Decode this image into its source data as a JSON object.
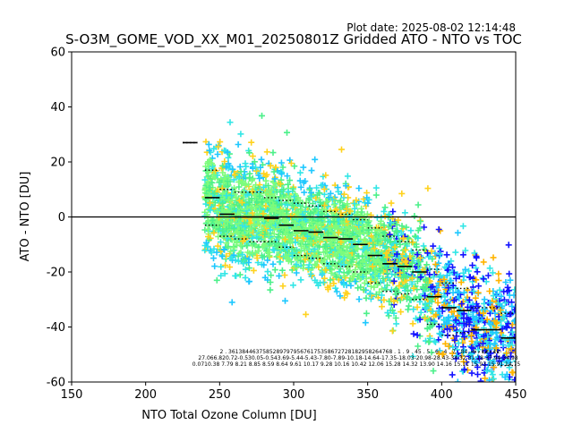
{
  "figure": {
    "plot_date": "Plot date: 2025-08-02 12:14:48",
    "title": "S-O3M_GOME_VOD_XX_M01_20250801Z Gridded ATO - NTO vs TOC"
  },
  "chart_data": {
    "type": "scatter",
    "title": "S-O3M_GOME_VOD_XX_M01_20250801Z Gridded ATO - NTO vs TOC",
    "xlabel": "NTO Total Ozone Column [DU]",
    "ylabel": "ATO - NTO [DU]",
    "xlim": [
      150,
      450
    ],
    "ylim": [
      -60,
      60
    ],
    "xticks": [
      150,
      200,
      250,
      300,
      350,
      400,
      450
    ],
    "yticks": [
      -60,
      -40,
      -20,
      0,
      20,
      40,
      60
    ],
    "grid": false,
    "legend": "none",
    "zero_line": 0,
    "marker": "plus",
    "colors": {
      "light_green": "#7cfc7c",
      "green": "#4cf08a",
      "cyan": "#33e6e6",
      "sky": "#1ec8ff",
      "yellow": "#ffd21e",
      "orange": "#ffb400",
      "blue": "#1414ff",
      "mean_line": "#000000"
    },
    "point_cloud": {
      "x_range": [
        240,
        450
      ],
      "description_colors": [
        "light_green",
        "green",
        "cyan",
        "sky",
        "yellow",
        "orange",
        "blue"
      ]
    },
    "binned_mean": {
      "x": [
        230,
        245,
        255,
        265,
        275,
        285,
        295,
        305,
        315,
        325,
        335,
        345,
        355,
        365,
        375,
        385,
        395,
        405,
        415,
        425,
        435,
        445
      ],
      "mean": [
        27,
        7,
        1,
        0,
        0,
        -0.5,
        -3,
        -5,
        -5.5,
        -7.5,
        -8,
        -10,
        -14,
        -17,
        -18,
        -20,
        -29,
        -33,
        -34,
        -41,
        -41,
        -44
      ],
      "std_upper": [
        27,
        17,
        10,
        9,
        9,
        7,
        6,
        5,
        4,
        2,
        1,
        -1,
        -4,
        -7,
        -9,
        -12,
        -19,
        -24,
        -26,
        -33,
        -33,
        -35
      ],
      "std_lower": [
        27,
        -3,
        -7,
        -8,
        -9,
        -9,
        -11,
        -14,
        -15,
        -17,
        -18,
        -20,
        -24,
        -27,
        -28,
        -30,
        -39,
        -43,
        -42,
        -49,
        -49,
        -54
      ]
    },
    "annotations": {
      "row1": "2 . 361384463758528979795676175358672728182958264768 . 1 . 9 . 45 . 5 . 6 . 4 . 7 . 84 . 6 . 12 . 12",
      "row2": "27.066.820.72-0.530.05-0.543.69-5.44-5.43-7.80-7.89-10.18-14.64-17.35-18.03-20.98-28.43-34.32-31.18-37.94-34.98",
      "row3": "0.0710.38 7.79 8.21 8.85 8.59 8.64 9.61 10.17 9.28 10.16 10.42 12.06 15.28 14.32 13.90 14.16 15.11 15.93 15.91 14.75"
    }
  }
}
